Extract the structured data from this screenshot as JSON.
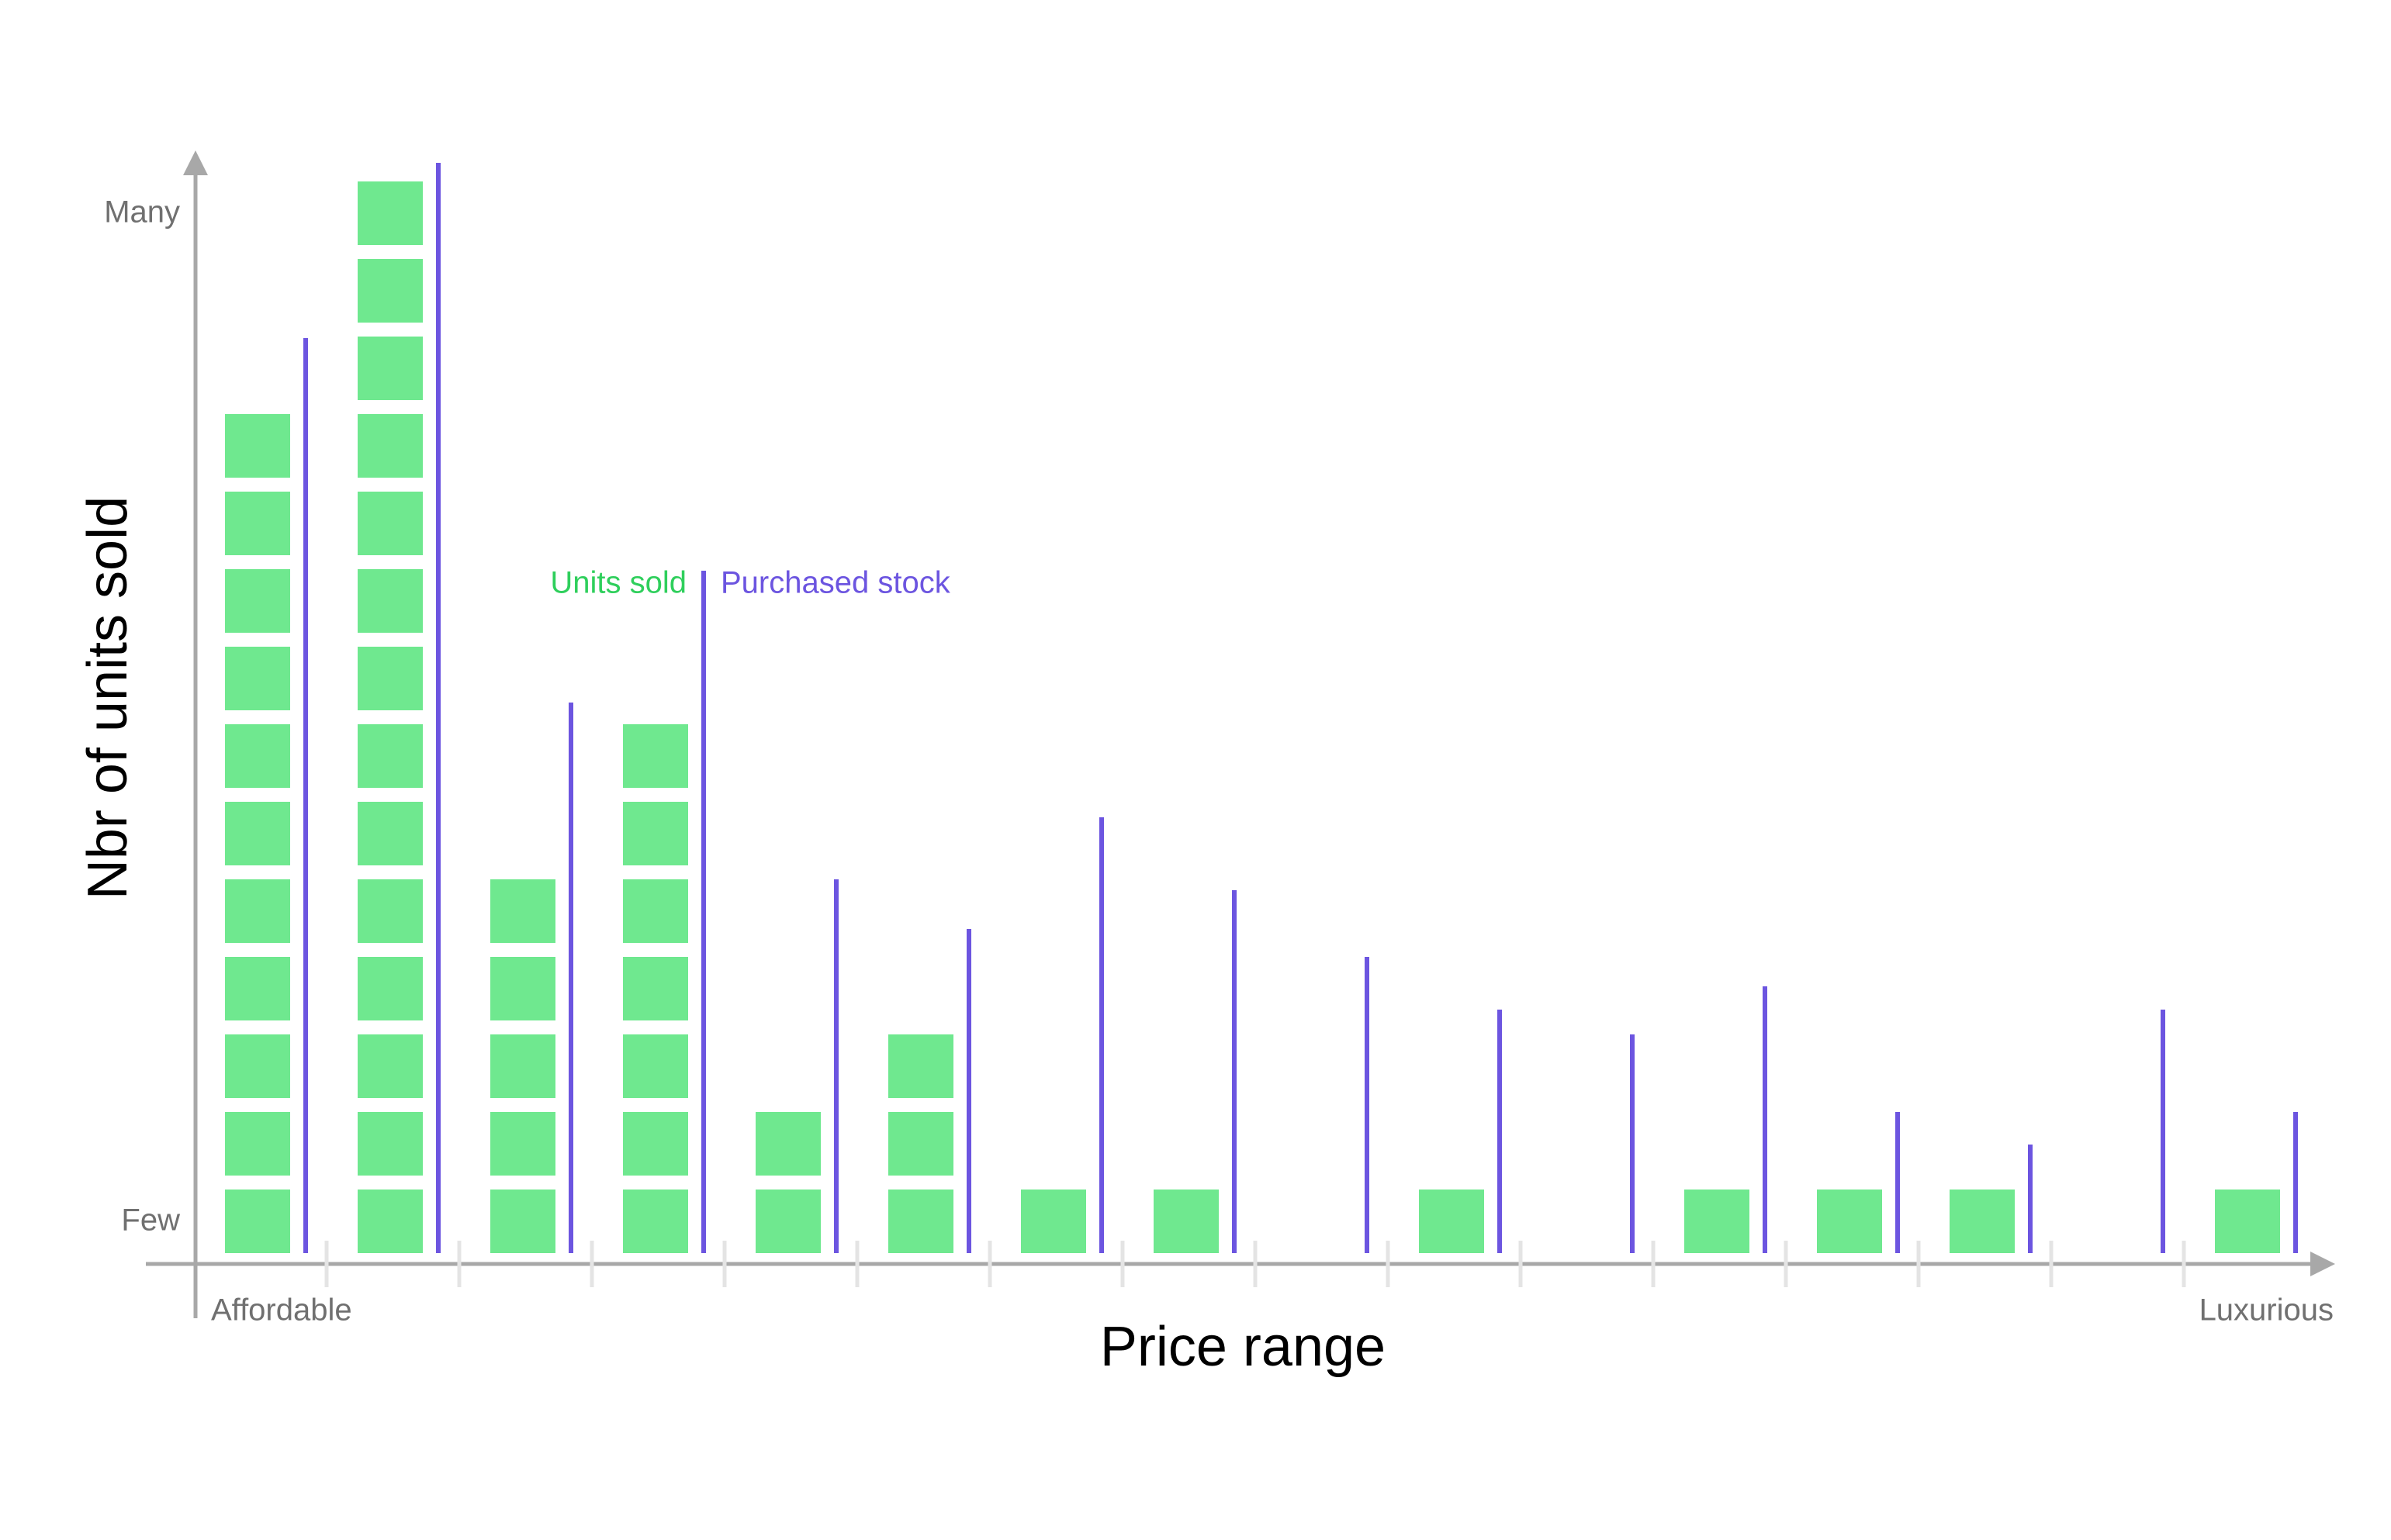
{
  "chart_data": {
    "type": "unit-bar",
    "x_label": "Price range",
    "y_label": "Nbr of units sold",
    "categories": [
      "Affordable",
      null,
      null,
      null,
      null,
      null,
      null,
      null,
      null,
      null,
      null,
      null,
      null,
      null,
      null,
      "Luxurious"
    ],
    "yticks": [
      {
        "value": 0.4,
        "label": "Few"
      },
      {
        "value": 13.4,
        "label": "Many"
      }
    ],
    "ylim": [
      0,
      14.2
    ],
    "series": [
      {
        "name": "Units sold",
        "color": "#6fe88f",
        "text_color": "#2fcf5c",
        "values": [
          11,
          14,
          5,
          7,
          2,
          3,
          1,
          1,
          0,
          1,
          0,
          1,
          1,
          1,
          0,
          1
        ]
      },
      {
        "name": "Purchased stock",
        "color": "#6c55e0",
        "text_color": "#6c55e0",
        "values": [
          11.8,
          14.06,
          7.1,
          8.8,
          4.82,
          4.18,
          5.62,
          4.68,
          3.82,
          3.14,
          2.82,
          3.44,
          1.82,
          1.4,
          3.14,
          1.82
        ]
      }
    ]
  }
}
